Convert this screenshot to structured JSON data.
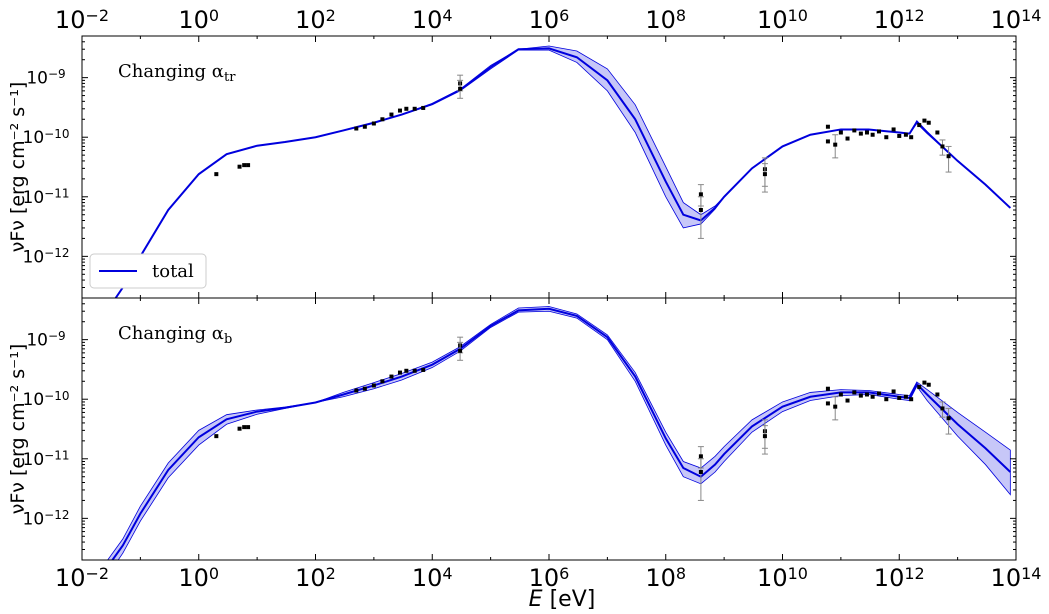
{
  "chart_data": {
    "type": "line",
    "xlabel": "E [eV]",
    "x_scale": "log",
    "y_scale": "log",
    "xlim": [
      0.01,
      100000000000000.0
    ],
    "x_ticks": [
      {
        "value": 0.01,
        "label": "10",
        "exp": "−2"
      },
      {
        "value": 1,
        "label": "10",
        "exp": "0"
      },
      {
        "value": 100,
        "label": "10",
        "exp": "2"
      },
      {
        "value": 10000.0,
        "label": "10",
        "exp": "4"
      },
      {
        "value": 1000000.0,
        "label": "10",
        "exp": "6"
      },
      {
        "value": 100000000.0,
        "label": "10",
        "exp": "8"
      },
      {
        "value": 10000000000.0,
        "label": "10",
        "exp": "10"
      },
      {
        "value": 1000000000000.0,
        "label": "10",
        "exp": "12"
      },
      {
        "value": 100000000000000.0,
        "label": "10",
        "exp": "14"
      }
    ],
    "y_ticks": [
      {
        "value": 1e-12,
        "label": "10",
        "exp": "−12"
      },
      {
        "value": 1e-11,
        "label": "10",
        "exp": "−11"
      },
      {
        "value": 1e-10,
        "label": "10",
        "exp": "−10"
      },
      {
        "value": 1e-09,
        "label": "10",
        "exp": "−9"
      }
    ],
    "ylabel": "νFν [erg cm⁻² s⁻¹]",
    "ylim": [
      2e-13,
      5e-09
    ],
    "panels": [
      {
        "title": "Changing α",
        "title_sub": "tr",
        "legend": {
          "entries": [
            {
              "name": "total",
              "color": "#0000dd"
            }
          ],
          "placement": "lower-left"
        },
        "series": [
          {
            "name": "total",
            "color": "#0000dd",
            "x": [
              0.02,
              0.05,
              0.1,
              0.3,
              1,
              3,
              10,
              30,
              100,
              300,
              1000,
              3000,
              10000,
              30000,
              100000,
              300000,
              1000000,
              3000000,
              10000000,
              30000000,
              100000000,
              200000000,
              400000000,
              700000000,
              1000000000,
              3000000000,
              10000000000,
              30000000000,
              100000000000,
              300000000000,
              1000000000000,
              1500000000000,
              2000000000000,
              3000000000000,
              10000000000000,
              30000000000000,
              80000000000000
            ],
            "y": [
              8e-14,
              3e-13,
              1e-12,
              6e-12,
              2.4e-11,
              5.2e-11,
              7.2e-11,
              8.3e-11,
              1e-10,
              1.3e-10,
              1.75e-10,
              2.4e-10,
              3.6e-10,
              6.2e-10,
              1.5e-09,
              3e-09,
              3.1e-09,
              2.2e-09,
              9e-10,
              2e-10,
              1.8e-11,
              5e-12,
              4e-12,
              6.5e-12,
              1e-11,
              3e-11,
              7e-11,
              1.1e-10,
              1.35e-10,
              1.35e-10,
              1.2e-10,
              1.15e-10,
              1.8e-10,
              1.2e-10,
              4e-11,
              1.6e-11,
              6.5e-12
            ],
            "band_upper": [
              8e-14,
              3e-13,
              1e-12,
              6e-12,
              2.4e-11,
              5.2e-11,
              7.2e-11,
              8.3e-11,
              1e-10,
              1.3e-10,
              1.75e-10,
              2.4e-10,
              3.7e-10,
              6.4e-10,
              1.6e-09,
              3e-09,
              3.4e-09,
              2.8e-09,
              1.4e-09,
              3.5e-10,
              3.2e-11,
              8e-12,
              5e-12,
              7e-12,
              1e-11,
              3e-11,
              7e-11,
              1.1e-10,
              1.35e-10,
              1.35e-10,
              1.2e-10,
              1.15e-10,
              1.9e-10,
              1.25e-10,
              4e-11,
              1.6e-11,
              6.5e-12
            ],
            "band_lower": [
              8e-14,
              3e-13,
              1e-12,
              6e-12,
              2.4e-11,
              5.2e-11,
              7.2e-11,
              8.3e-11,
              1e-10,
              1.3e-10,
              1.75e-10,
              2.4e-10,
              3.5e-10,
              6e-10,
              1.4e-09,
              2.9e-09,
              2.9e-09,
              1.8e-09,
              6e-10,
              1.2e-10,
              1e-11,
              3e-12,
              3.5e-12,
              6.2e-12,
              1e-11,
              3e-11,
              7e-11,
              1.1e-10,
              1.35e-10,
              1.35e-10,
              1.2e-10,
              1.15e-10,
              1.7e-10,
              1.15e-10,
              4e-11,
              1.6e-11,
              6.5e-12
            ]
          }
        ]
      },
      {
        "title": "Changing α",
        "title_sub": "b",
        "series": [
          {
            "name": "total",
            "color": "#0000dd",
            "x": [
              0.02,
              0.05,
              0.1,
              0.3,
              1,
              3,
              10,
              30,
              100,
              300,
              1000,
              3000,
              10000,
              30000,
              100000,
              300000,
              1000000,
              3000000,
              10000000,
              30000000,
              100000000,
              200000000,
              400000000,
              700000000,
              1000000000,
              3000000000,
              10000000000,
              30000000000,
              100000000000,
              300000000000,
              1000000000000,
              1500000000000,
              2000000000000,
              3000000000000,
              10000000000000,
              30000000000000,
              80000000000000
            ],
            "y": [
              1e-13,
              3.5e-13,
              1.2e-12,
              6.5e-12,
              2.3e-11,
              4.6e-11,
              6.2e-11,
              7.2e-11,
              8.8e-11,
              1.2e-10,
              1.7e-10,
              2.4e-10,
              3.8e-10,
              7e-10,
              1.7e-09,
              3.1e-09,
              3.3e-09,
              2.5e-09,
              1.1e-09,
              2.4e-10,
              2.2e-11,
              7e-12,
              5e-12,
              8e-12,
              1.2e-11,
              3.5e-11,
              7.5e-11,
              1.1e-10,
              1.3e-10,
              1.3e-10,
              1.1e-10,
              1.05e-10,
              1.8e-10,
              1.2e-10,
              3.8e-11,
              1.5e-11,
              6e-12
            ],
            "band_upper": [
              1.3e-13,
              4.5e-13,
              1.6e-12,
              8.5e-12,
              3e-11,
              5.5e-11,
              6.6e-11,
              7.4e-11,
              8.8e-11,
              1.3e-10,
              1.9e-10,
              2.7e-10,
              4.2e-10,
              7.6e-10,
              1.8e-09,
              3.4e-09,
              3.6e-09,
              2.7e-09,
              1.2e-09,
              2.8e-10,
              2.8e-11,
              9e-12,
              7e-12,
              1.1e-11,
              1.6e-11,
              4.5e-11,
              9e-11,
              1.3e-10,
              1.45e-10,
              1.4e-10,
              1.2e-10,
              1.15e-10,
              1.95e-10,
              1.45e-10,
              6e-11,
              2.8e-11,
              1.4e-11
            ],
            "band_lower": [
              7e-14,
              2.6e-13,
              9e-13,
              4.8e-12,
              1.7e-11,
              3.8e-11,
              5.6e-11,
              7e-11,
              8.8e-11,
              1.1e-10,
              1.5e-10,
              2.1e-10,
              3.4e-10,
              6.4e-10,
              1.6e-09,
              2.9e-09,
              3e-09,
              2.3e-09,
              1e-09,
              2e-10,
              1.7e-11,
              5e-12,
              3.8e-12,
              6e-12,
              9e-12,
              2.8e-11,
              6.2e-11,
              9.5e-11,
              1.15e-10,
              1.2e-10,
              1e-10,
              9.5e-11,
              1.65e-10,
              9.5e-11,
              2.4e-11,
              8e-12,
              2.5e-12
            ]
          }
        ]
      }
    ],
    "observations": {
      "color": "#000000",
      "points": [
        {
          "x": 2,
          "y": 2.4e-11
        },
        {
          "x": 5,
          "y": 3.2e-11
        },
        {
          "x": 6,
          "y": 3.4e-11
        },
        {
          "x": 7,
          "y": 3.4e-11
        },
        {
          "x": 500,
          "y": 1.4e-10
        },
        {
          "x": 700,
          "y": 1.5e-10
        },
        {
          "x": 1000,
          "y": 1.7e-10
        },
        {
          "x": 1400,
          "y": 2e-10
        },
        {
          "x": 2000,
          "y": 2.4e-10
        },
        {
          "x": 2800,
          "y": 2.8e-10
        },
        {
          "x": 3600,
          "y": 3e-10
        },
        {
          "x": 5000,
          "y": 3e-10
        },
        {
          "x": 7000,
          "y": 3.1e-10
        },
        {
          "x": 30000,
          "y": 8e-10,
          "err": [
            6e-10,
            1.1e-09
          ]
        },
        {
          "x": 30000,
          "y": 6.5e-10,
          "err": [
            4.5e-10,
            9e-10
          ]
        },
        {
          "x": 400000000,
          "y": 1.1e-11,
          "err": [
            7e-12,
            1.6e-11
          ]
        },
        {
          "x": 400000000,
          "y": 6e-12,
          "err": [
            2e-12,
            1e-11
          ]
        },
        {
          "x": 5000000000,
          "y": 2.9e-11,
          "err": [
            1.5e-11,
            4.5e-11
          ]
        },
        {
          "x": 5000000000,
          "y": 2.4e-11,
          "err": [
            1.2e-11,
            3.6e-11
          ]
        },
        {
          "x": 60000000000,
          "y": 1.5e-10
        },
        {
          "x": 60000000000,
          "y": 8.5e-11
        },
        {
          "x": 80000000000,
          "y": 7.5e-11,
          "err": [
            4.5e-11,
            1.1e-10
          ]
        },
        {
          "x": 100000000000,
          "y": 1.2e-10
        },
        {
          "x": 130000000000,
          "y": 9.5e-11
        },
        {
          "x": 170000000000,
          "y": 1.3e-10
        },
        {
          "x": 220000000000,
          "y": 1.15e-10
        },
        {
          "x": 280000000000,
          "y": 1.2e-10
        },
        {
          "x": 350000000000,
          "y": 1.1e-10
        },
        {
          "x": 450000000000,
          "y": 1.25e-10
        },
        {
          "x": 600000000000,
          "y": 1e-10
        },
        {
          "x": 800000000000,
          "y": 1.35e-10
        },
        {
          "x": 1000000000000,
          "y": 1.05e-10
        },
        {
          "x": 1300000000000,
          "y": 1.1e-10
        },
        {
          "x": 1600000000000,
          "y": 1e-10
        },
        {
          "x": 2200000000000,
          "y": 1.6e-10
        },
        {
          "x": 2700000000000,
          "y": 1.9e-10
        },
        {
          "x": 3200000000000,
          "y": 1.75e-10
        },
        {
          "x": 4500000000000,
          "y": 1.2e-10
        },
        {
          "x": 5500000000000,
          "y": 7e-11,
          "err": [
            5e-11,
            9e-11
          ]
        },
        {
          "x": 7000000000000,
          "y": 4.8e-11,
          "err": [
            2.6e-11,
            7e-11
          ]
        }
      ]
    }
  }
}
